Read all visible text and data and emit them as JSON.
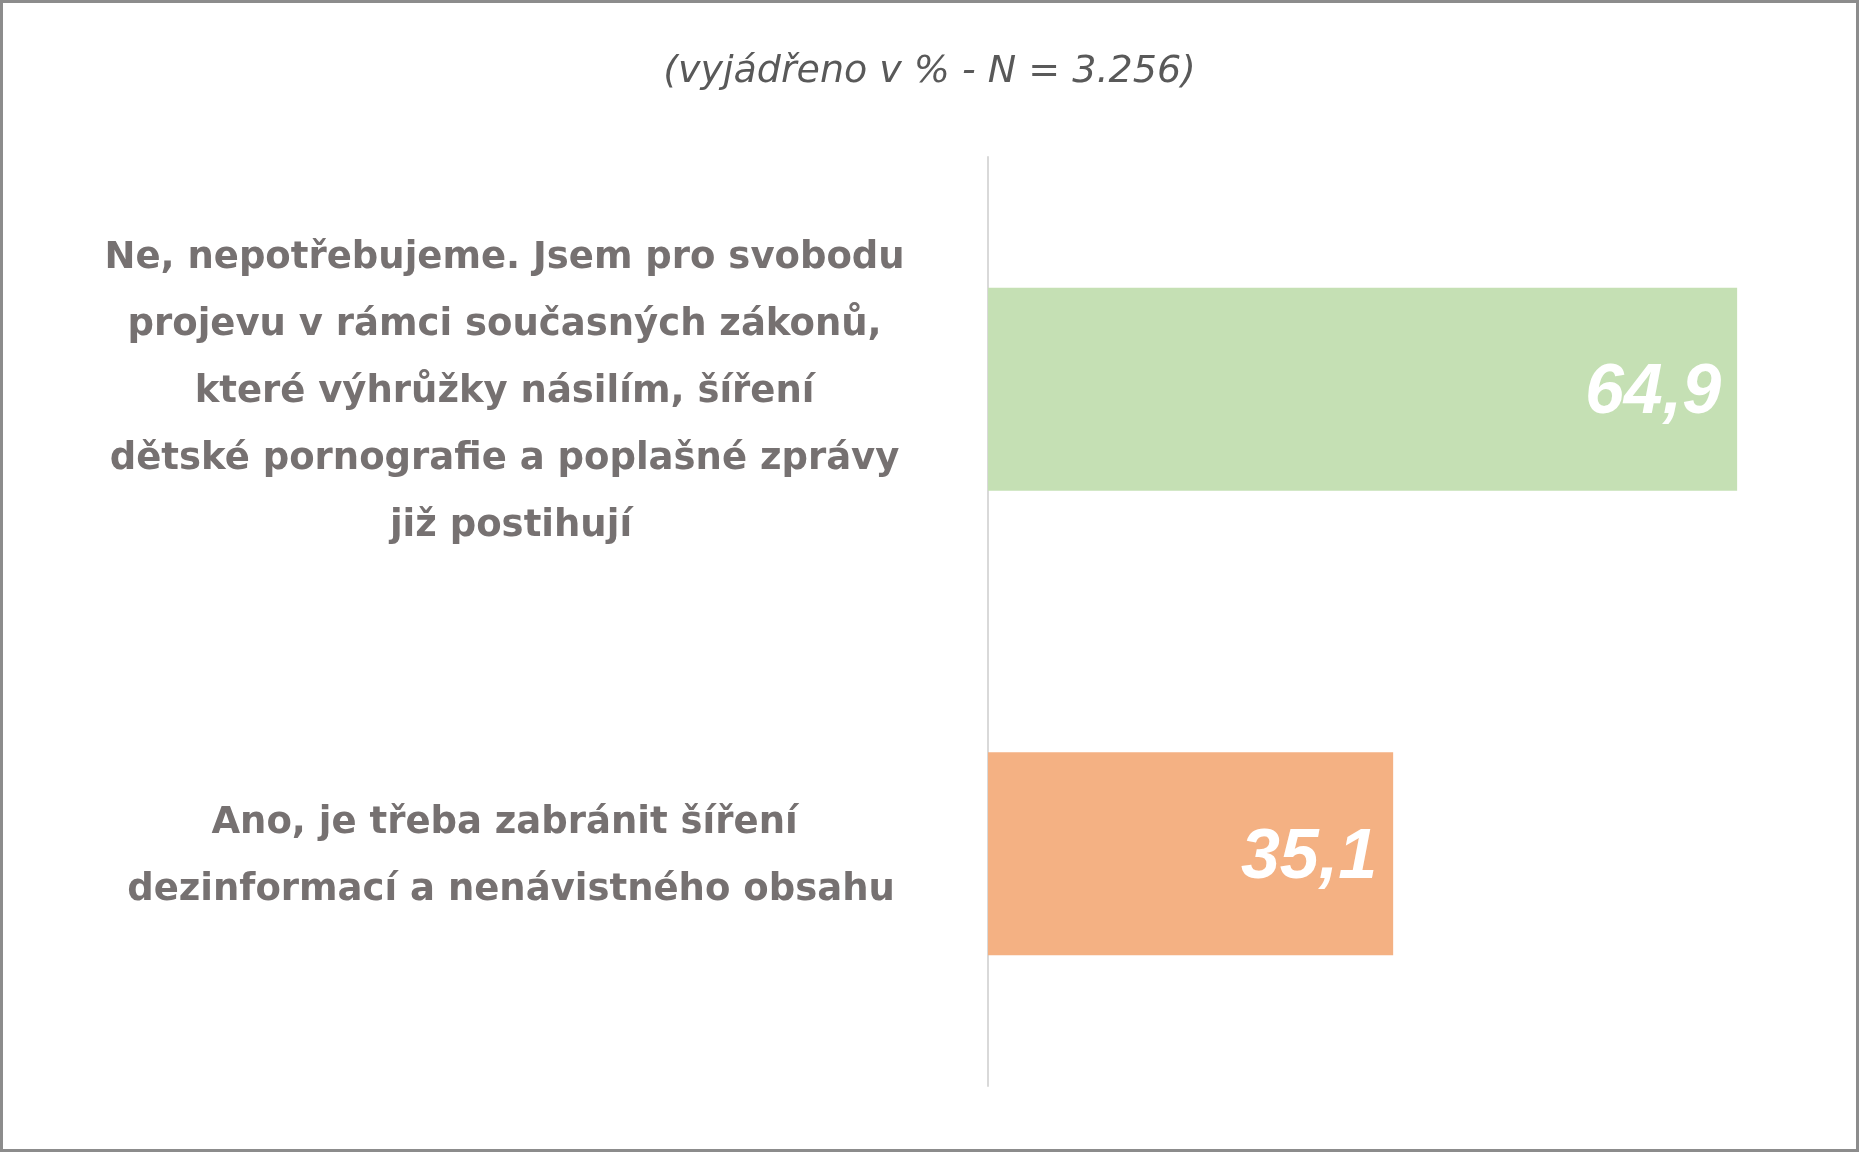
{
  "chart_data": {
    "type": "bar",
    "orientation": "horizontal",
    "title": "(vyjádřeno v % - N = 3.256)",
    "categories": [
      "Ne, nepotřebujeme. Jsem pro svobodu projevu v rámci současných zákonů, které výhrůžky násilím, šíření dětské pornografie a poplašné zprávy již postihují",
      "Ano, je třeba zabránit šíření dezinformací a nenávistného obsahu"
    ],
    "values": [
      64.9,
      35.1
    ],
    "colors": [
      "#c5e0b4",
      "#f4b183"
    ],
    "value_labels": [
      "64,9",
      "35,1"
    ],
    "grid": false
  }
}
